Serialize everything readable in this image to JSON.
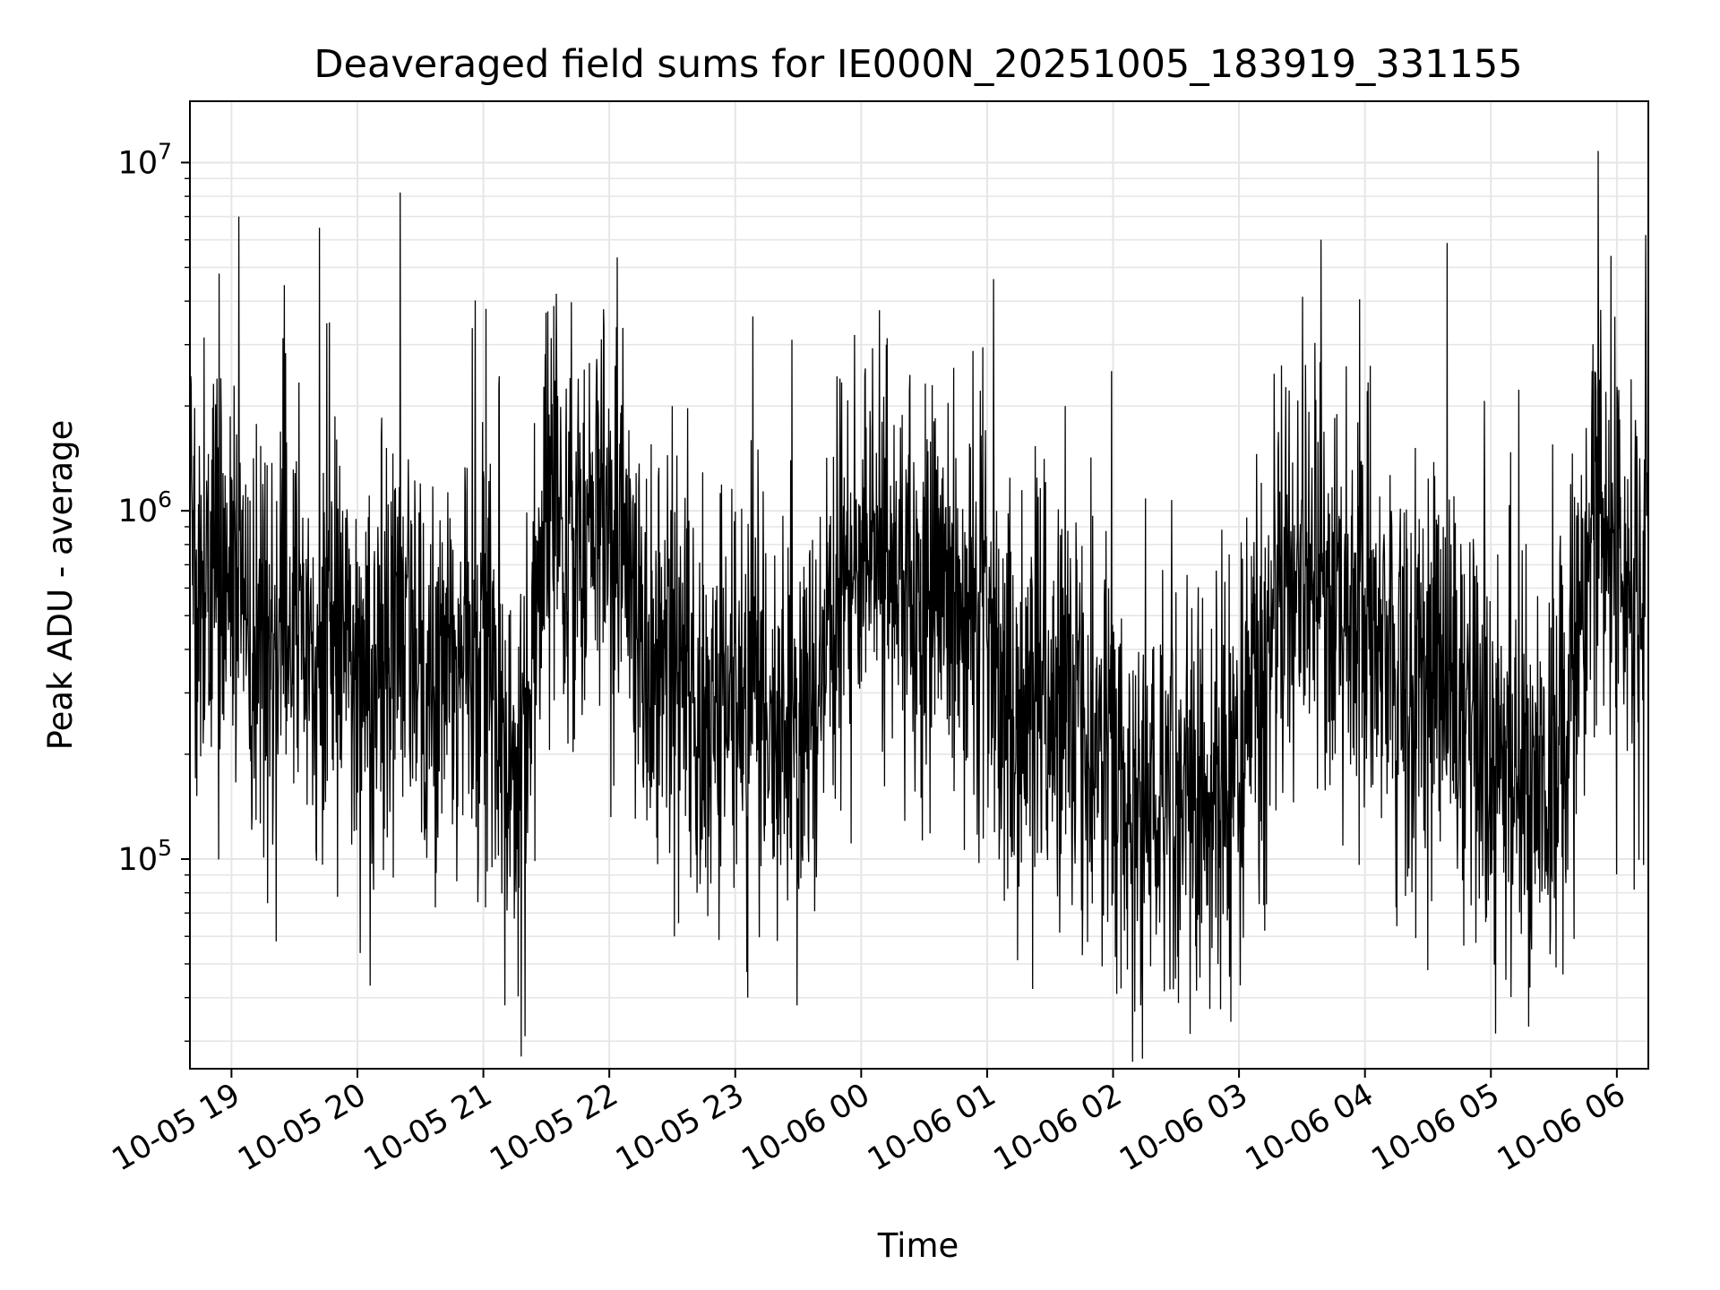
{
  "chart_data": {
    "type": "line",
    "title": "Deaveraged field sums for IE000N_20251005_183919_331155",
    "xlabel": "Time",
    "ylabel": "Peak ADU - average",
    "yscale": "log",
    "ylim": [
      25000,
      15000000
    ],
    "xlim_hours": [
      18.67,
      30.25
    ],
    "grid": true,
    "line_color": "#000000",
    "grid_color": "#e6e6e6",
    "x_ticks": [
      {
        "label": "10-05 19",
        "hour": 19
      },
      {
        "label": "10-05 20",
        "hour": 20
      },
      {
        "label": "10-05 21",
        "hour": 21
      },
      {
        "label": "10-05 22",
        "hour": 22
      },
      {
        "label": "10-05 23",
        "hour": 23
      },
      {
        "label": "10-06 00",
        "hour": 24
      },
      {
        "label": "10-06 01",
        "hour": 25
      },
      {
        "label": "10-06 02",
        "hour": 26
      },
      {
        "label": "10-06 03",
        "hour": 27
      },
      {
        "label": "10-06 04",
        "hour": 28
      },
      {
        "label": "10-06 05",
        "hour": 29
      },
      {
        "label": "10-06 06",
        "hour": 30
      }
    ],
    "y_ticks": [
      {
        "base": "10",
        "exp": "5",
        "value": 100000
      },
      {
        "base": "10",
        "exp": "6",
        "value": 1000000
      },
      {
        "base": "10",
        "exp": "7",
        "value": 10000000
      }
    ],
    "series": [
      {
        "name": "deaveraged field sums",
        "x_hours": [
          18.67,
          18.75,
          18.85,
          18.95,
          19.05,
          19.2,
          19.35,
          19.5,
          19.65,
          19.8,
          19.95,
          20.1,
          20.25,
          20.4,
          20.55,
          20.7,
          20.85,
          21.0,
          21.15,
          21.25,
          21.35,
          21.45,
          21.55,
          21.65,
          21.8,
          21.95,
          22.1,
          22.25,
          22.4,
          22.55,
          22.7,
          22.85,
          23.0,
          23.15,
          23.3,
          23.45,
          23.6,
          23.75,
          23.9,
          24.05,
          24.2,
          24.35,
          24.5,
          24.65,
          24.8,
          24.95,
          25.1,
          25.25,
          25.4,
          25.55,
          25.7,
          25.85,
          26.0,
          26.15,
          26.3,
          26.45,
          26.6,
          26.75,
          26.9,
          27.05,
          27.2,
          27.35,
          27.5,
          27.65,
          27.8,
          27.95,
          28.1,
          28.25,
          28.4,
          28.55,
          28.7,
          28.85,
          29.0,
          29.15,
          29.3,
          29.45,
          29.6,
          29.75,
          29.9,
          30.05,
          30.25
        ],
        "y_level": [
          550000,
          600000,
          700000,
          800000,
          650000,
          450000,
          400000,
          500000,
          420000,
          450000,
          380000,
          350000,
          420000,
          480000,
          300000,
          380000,
          450000,
          420000,
          320000,
          150000,
          250000,
          700000,
          1200000,
          900000,
          700000,
          1100000,
          900000,
          450000,
          380000,
          300000,
          280000,
          320000,
          350000,
          300000,
          280000,
          250000,
          260000,
          450000,
          700000,
          800000,
          650000,
          550000,
          600000,
          650000,
          500000,
          450000,
          300000,
          250000,
          280000,
          320000,
          300000,
          220000,
          180000,
          150000,
          140000,
          160000,
          150000,
          160000,
          170000,
          180000,
          400000,
          550000,
          600000,
          620000,
          580000,
          550000,
          400000,
          350000,
          300000,
          350000,
          300000,
          280000,
          200000,
          180000,
          160000,
          180000,
          250000,
          700000,
          850000,
          650000,
          600000
        ],
        "peaks": [
          {
            "hour": 18.9,
            "value": 4800000
          },
          {
            "hour": 19.06,
            "value": 7000000
          },
          {
            "hour": 19.7,
            "value": 6500000
          },
          {
            "hour": 21.02,
            "value": 3800000
          },
          {
            "hour": 21.58,
            "value": 4200000
          },
          {
            "hour": 22.5,
            "value": 2000000
          },
          {
            "hour": 23.45,
            "value": 3100000
          },
          {
            "hour": 24.2,
            "value": 3000000
          },
          {
            "hour": 25.62,
            "value": 2000000
          },
          {
            "hour": 27.85,
            "value": 2600000
          },
          {
            "hour": 29.85,
            "value": 10800000
          },
          {
            "hour": 30.23,
            "value": 6200000
          }
        ],
        "troughs": [
          {
            "hour": 21.17,
            "value": 38000
          },
          {
            "hour": 21.33,
            "value": 31000
          },
          {
            "hour": 23.1,
            "value": 40000
          },
          {
            "hour": 23.49,
            "value": 38000
          },
          {
            "hour": 26.03,
            "value": 41000
          },
          {
            "hour": 26.22,
            "value": 38000
          },
          {
            "hour": 28.5,
            "value": 48000
          },
          {
            "hour": 29.12,
            "value": 45000
          }
        ]
      }
    ]
  }
}
